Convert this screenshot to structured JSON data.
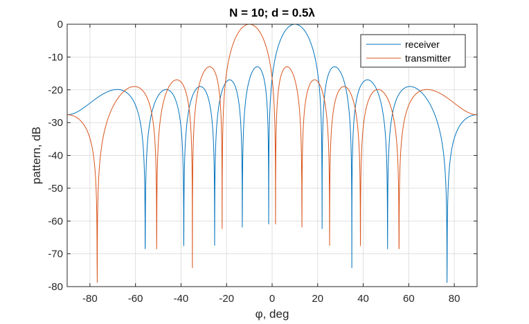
{
  "chart_data": {
    "type": "line",
    "title": "N = 10; d = 0.5λ",
    "xlabel": "φ, deg",
    "ylabel": "pattern, dB",
    "xlim": [
      -90,
      90
    ],
    "ylim": [
      -80,
      0
    ],
    "xticks": [
      -80,
      -60,
      -40,
      -20,
      0,
      20,
      40,
      60,
      80
    ],
    "yticks": [
      0,
      -10,
      -20,
      -30,
      -40,
      -50,
      -60,
      -70,
      -80
    ],
    "grid": true,
    "legend_position": "top-right",
    "array": {
      "N": 10,
      "d_over_lambda": 0.5,
      "floor_db": -80
    },
    "series": [
      {
        "name": "receiver",
        "color": "#0072BD",
        "steer_deg": 10
      },
      {
        "name": "transmitter",
        "color": "#D95319",
        "steer_deg": -10
      }
    ]
  }
}
